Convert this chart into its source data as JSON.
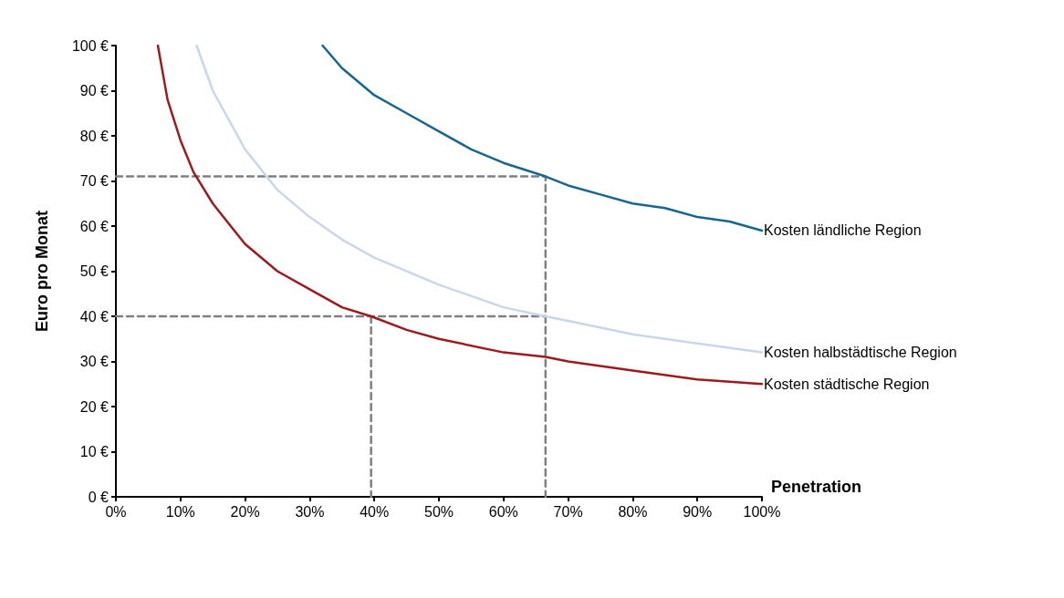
{
  "chart_data": {
    "type": "line",
    "xlabel": "Penetration",
    "ylabel": "Euro pro Monat",
    "xlim": [
      0,
      100
    ],
    "ylim": [
      0,
      100
    ],
    "xticks": [
      {
        "value": 0,
        "label": "0%"
      },
      {
        "value": 10,
        "label": "10%"
      },
      {
        "value": 20,
        "label": "20%"
      },
      {
        "value": 30,
        "label": "30%"
      },
      {
        "value": 40,
        "label": "40%"
      },
      {
        "value": 50,
        "label": "50%"
      },
      {
        "value": 60,
        "label": "60%"
      },
      {
        "value": 70,
        "label": "70%"
      },
      {
        "value": 80,
        "label": "80%"
      },
      {
        "value": 90,
        "label": "90%"
      },
      {
        "value": 100,
        "label": "100%"
      }
    ],
    "yticks": [
      {
        "value": 0,
        "label": "0 €"
      },
      {
        "value": 10,
        "label": "10 €"
      },
      {
        "value": 20,
        "label": "20 €"
      },
      {
        "value": 30,
        "label": "30 €"
      },
      {
        "value": 40,
        "label": "40 €"
      },
      {
        "value": 50,
        "label": "50 €"
      },
      {
        "value": 60,
        "label": "60 €"
      },
      {
        "value": 70,
        "label": "70 €"
      },
      {
        "value": 80,
        "label": "80 €"
      },
      {
        "value": 90,
        "label": "90 €"
      },
      {
        "value": 100,
        "label": "100 €"
      }
    ],
    "grid": false,
    "legend": false,
    "marker": "none",
    "series": [
      {
        "name": "Kosten ländliche Region",
        "color": "#17668f",
        "line_style": "solid",
        "x": [
          32,
          35,
          40,
          45,
          50,
          55,
          60,
          66.5,
          70,
          75,
          80,
          85,
          90,
          95,
          100
        ],
        "values": [
          100,
          95,
          89,
          85,
          81,
          77,
          74,
          71,
          69,
          67,
          65,
          64,
          62,
          61,
          59
        ]
      },
      {
        "name": "Kosten halbstädtische Region",
        "color": "#c9d7ea",
        "line_style": "solid",
        "x": [
          12.5,
          15,
          20,
          25,
          30,
          35,
          40,
          50,
          60,
          66.5,
          70,
          80,
          90,
          100
        ],
        "values": [
          100,
          90,
          77,
          68,
          62,
          57,
          53,
          47,
          42,
          40,
          39,
          36,
          34,
          32
        ]
      },
      {
        "name": "Kosten städtische Region",
        "color": "#9b1b1e",
        "line_style": "solid",
        "x": [
          6.5,
          8,
          10,
          12,
          15,
          20,
          25,
          30,
          35,
          39.5,
          45,
          50,
          60,
          66.5,
          70,
          80,
          90,
          100
        ],
        "values": [
          100,
          88,
          79,
          72,
          65,
          56,
          50,
          46,
          42,
          40,
          37,
          35,
          32,
          31,
          30,
          28,
          26,
          25
        ]
      },
      {
        "color": "#808080",
        "line_style": "dashed",
        "x": [
          0,
          66.5,
          66.5
        ],
        "values": [
          71,
          71,
          0
        ]
      },
      {
        "color": "#808080",
        "line_style": "dashed",
        "x": [
          0,
          66.5
        ],
        "values": [
          40,
          40
        ]
      },
      {
        "color": "#808080",
        "line_style": "dashed",
        "x": [
          39.5,
          39.5
        ],
        "values": [
          40,
          0
        ]
      }
    ]
  }
}
